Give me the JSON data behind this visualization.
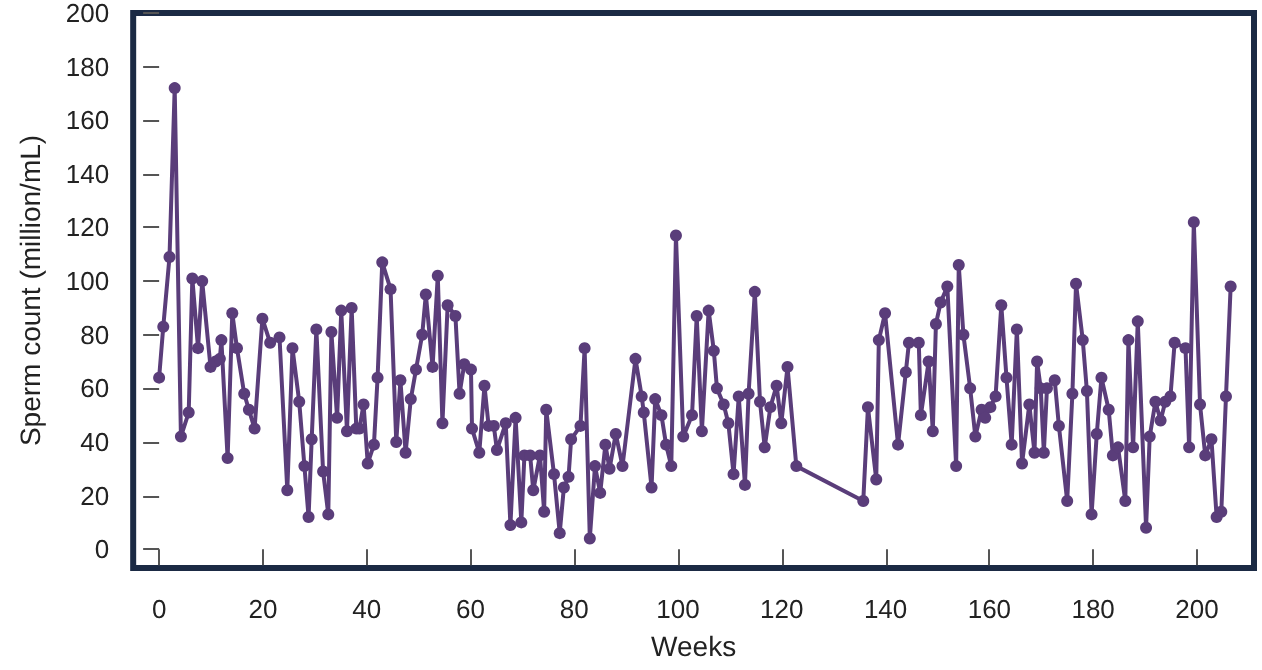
{
  "chart_data": {
    "type": "line",
    "xlabel": "Weeks",
    "ylabel": "Sperm count (million/mL)",
    "xlim": [
      -5,
      211
    ],
    "xticks": [
      0,
      20,
      40,
      60,
      80,
      100,
      120,
      140,
      160,
      180,
      200
    ],
    "ylim": [
      -7,
      200
    ],
    "yticks": [
      0,
      20,
      40,
      60,
      80,
      100,
      120,
      140,
      160,
      180,
      200
    ],
    "grid": false,
    "marker": "circle",
    "line_style": "solid",
    "series": [
      {
        "color": "#5a3d7a",
        "x": [
          0,
          0.8,
          2,
          3,
          4.2,
          5.7,
          6.4,
          7.5,
          8.3,
          9.9,
          10.9,
          11.7,
          12,
          13.2,
          14.1,
          15,
          16.4,
          17.3,
          18.4,
          19.9,
          21.4,
          23.2,
          24.7,
          25.7,
          27,
          28,
          28.8,
          29.4,
          30.3,
          31.6,
          32.6,
          33.2,
          34.3,
          35.1,
          36.2,
          37.1,
          38,
          38.6,
          39.4,
          40.2,
          41.4,
          42.1,
          43,
          44.6,
          45.7,
          46.5,
          47.5,
          48.5,
          49.5,
          50.7,
          51.4,
          52.7,
          53.7,
          54.6,
          55.6,
          57.1,
          57.9,
          58.8,
          60.1,
          60.3,
          61.7,
          62.7,
          63.5,
          64.5,
          65.1,
          66.8,
          67.7,
          68.7,
          69.8,
          70.4,
          71.5,
          72.1,
          73.4,
          74.2,
          74.6,
          76.1,
          77.2,
          78,
          78.9,
          79.4,
          81.2,
          82,
          83,
          84,
          85,
          86,
          86.8,
          88,
          89.3,
          91.8,
          93,
          93.4,
          94.9,
          95.6,
          96.8,
          97.7,
          98.7,
          99.6,
          101,
          102.7,
          103.6,
          104.6,
          105.9,
          106.9,
          107.5,
          108.8,
          109.7,
          110.7,
          111.7,
          112.9,
          113.6,
          114.8,
          115.8,
          116.7,
          117.8,
          119,
          119.9,
          121.1,
          122.8,
          135.7,
          136.6,
          138.2,
          138.7,
          139.9,
          142.4,
          143.9,
          144.5,
          146.4,
          146.8,
          148.3,
          149.1,
          149.7,
          150.6,
          151.9,
          153.6,
          154.1,
          155,
          156.3,
          157.3,
          158.5,
          159.2,
          160.2,
          161.2,
          162.3,
          163.3,
          164.3,
          165.3,
          166.3,
          167.7,
          168.7,
          169.2,
          169.9,
          170.5,
          171.1,
          172.6,
          173.4,
          175,
          176,
          176.7,
          178,
          178.8,
          179.7,
          180.7,
          181.6,
          183,
          183.8,
          184.8,
          186.2,
          186.8,
          187.7,
          188.6,
          190.2,
          190.9,
          192,
          193,
          193.9,
          194.9,
          195.7,
          197.8,
          198.5,
          199.4,
          200.6,
          201.6,
          202.8,
          203.8,
          204.7,
          205.6,
          206.5
        ],
        "values": [
          64,
          83,
          109,
          172,
          42,
          51,
          101,
          75,
          100,
          68,
          70,
          71,
          78,
          34,
          88,
          75,
          58,
          52,
          45,
          86,
          77,
          79,
          22,
          75,
          55,
          31,
          12,
          41,
          82,
          29,
          13,
          81,
          49,
          89,
          44,
          90,
          45,
          45,
          54,
          32,
          39,
          64,
          107,
          97,
          40,
          63,
          36,
          56,
          67,
          80,
          95,
          68,
          102,
          47,
          91,
          87,
          58,
          69,
          67,
          45,
          36,
          61,
          46,
          46,
          37,
          47,
          9,
          49,
          10,
          35,
          35,
          22,
          35,
          14,
          52,
          28,
          6,
          23,
          27,
          41,
          46,
          75,
          4,
          31,
          21,
          39,
          30,
          43,
          31,
          71,
          57,
          51,
          23,
          56,
          50,
          39,
          31,
          117,
          42,
          50,
          87,
          44,
          89,
          74,
          60,
          54,
          47,
          28,
          57,
          24,
          58,
          96,
          55,
          38,
          53,
          61,
          47,
          68,
          31,
          18,
          53,
          26,
          78,
          88,
          39,
          66,
          77,
          77,
          50,
          70,
          44,
          84,
          92,
          98,
          31,
          106,
          80,
          60,
          42,
          52,
          49,
          53,
          57,
          91,
          64,
          39,
          82,
          32,
          54,
          36,
          70,
          60,
          36,
          60,
          63,
          46,
          18,
          58,
          99,
          78,
          59,
          13,
          43,
          64,
          52,
          35,
          38,
          18,
          78,
          38,
          85,
          8,
          42,
          55,
          48,
          55,
          57,
          77,
          75,
          38,
          122,
          54,
          35,
          41,
          12,
          14,
          57,
          98
        ]
      }
    ]
  }
}
